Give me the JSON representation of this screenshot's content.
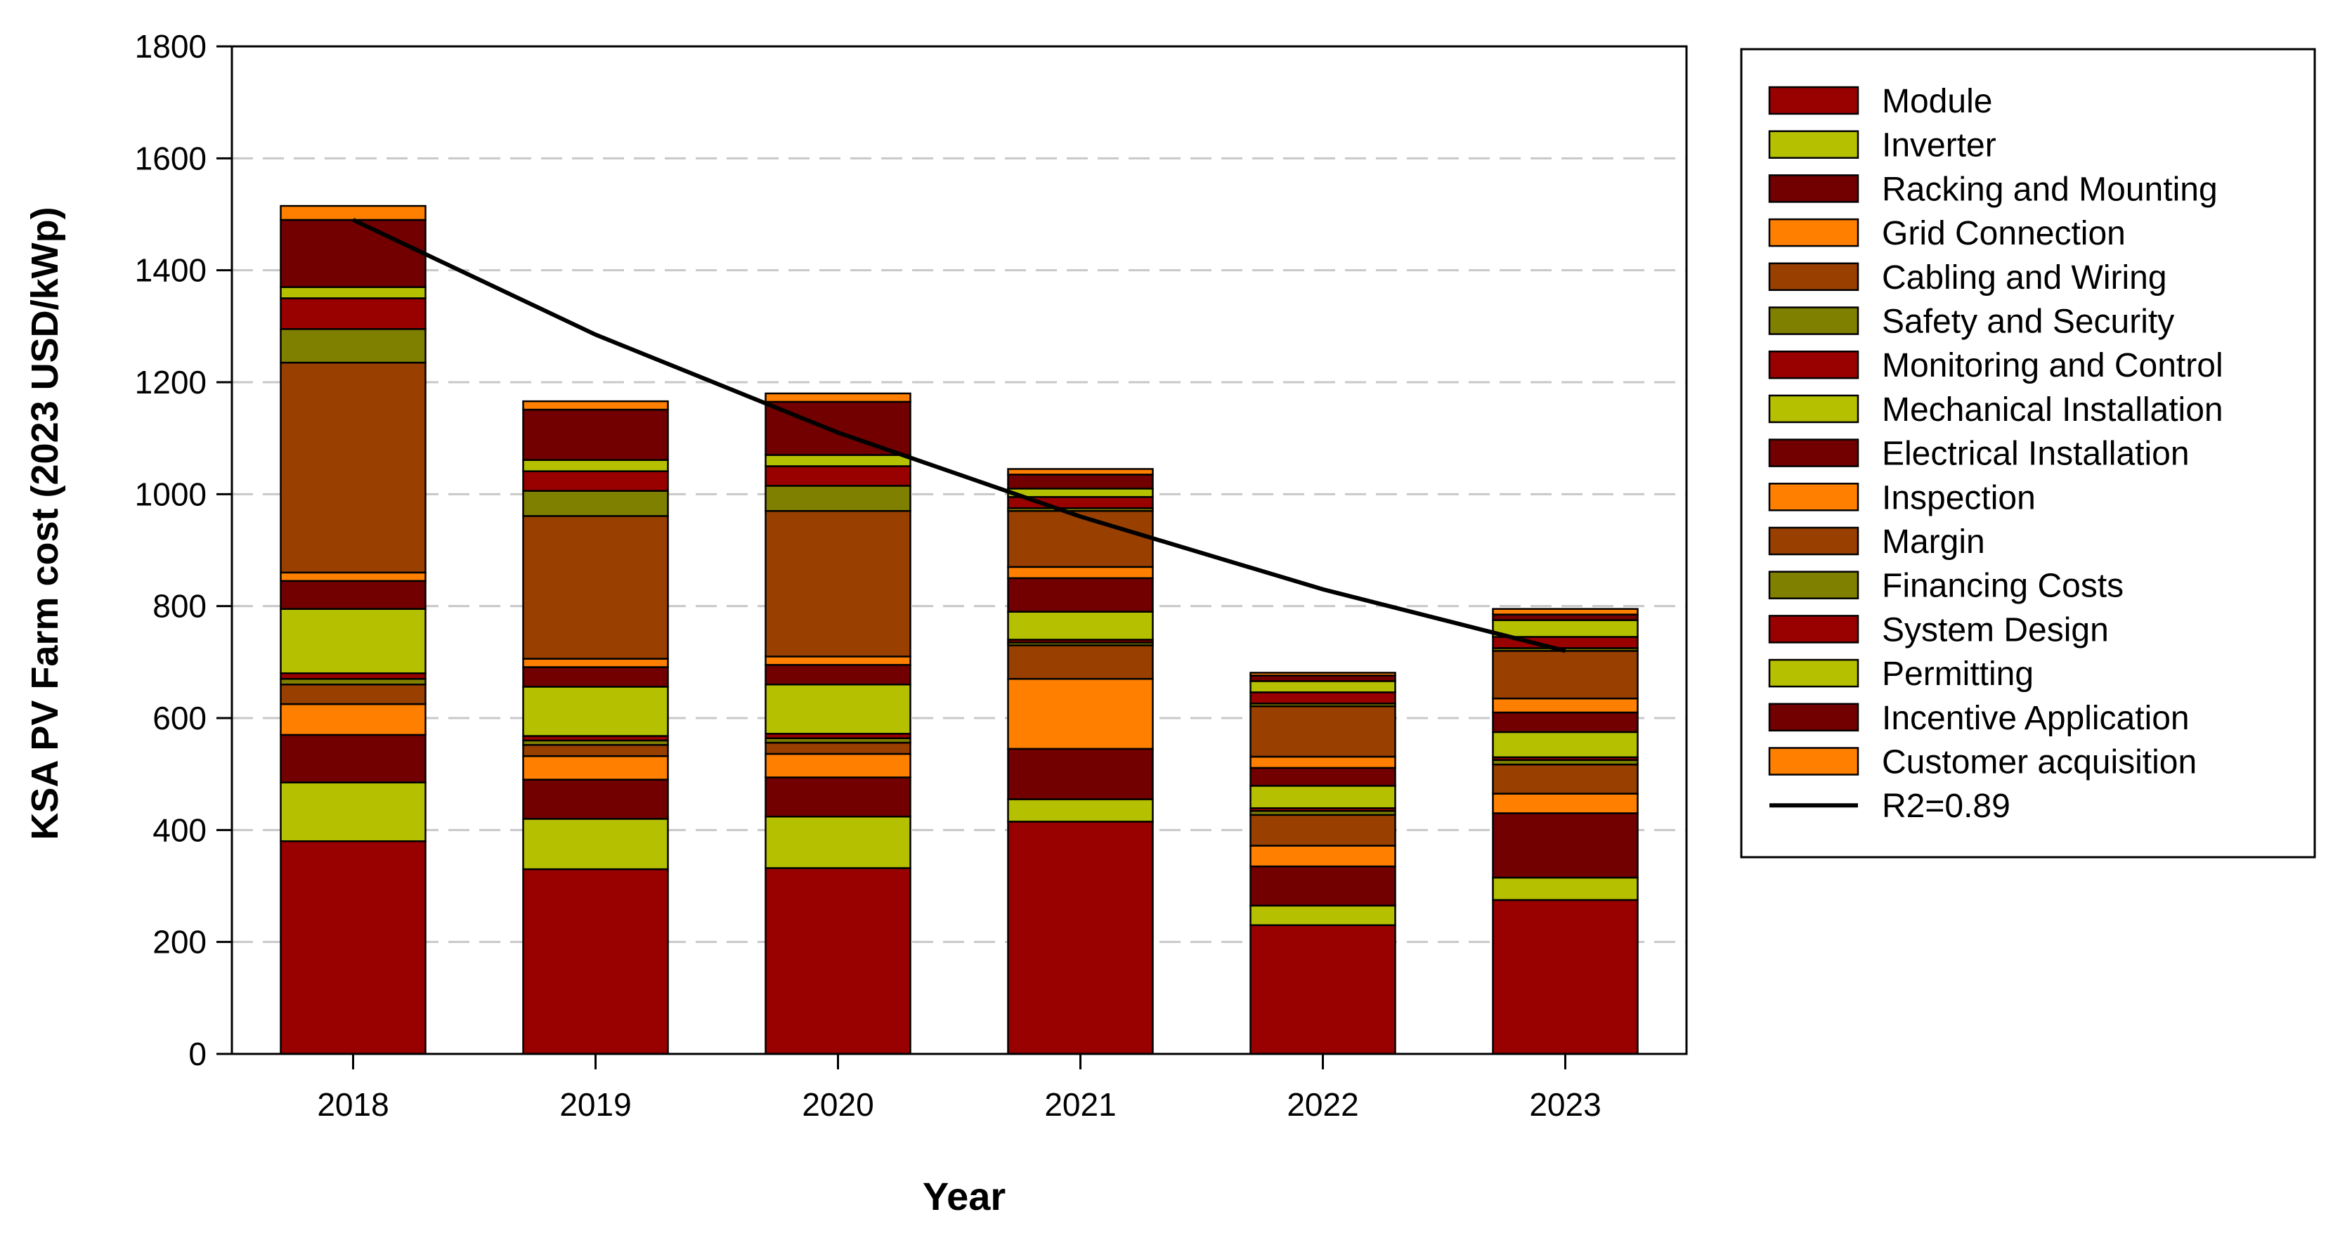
{
  "chart_data": {
    "type": "bar",
    "stacked": true,
    "title": "",
    "xlabel": "Year",
    "ylabel": "KSA PV Farm cost (2023 USD/kWp)",
    "ylim": [
      0,
      1800
    ],
    "yticks": [
      0,
      200,
      400,
      600,
      800,
      1000,
      1200,
      1400,
      1600,
      1800
    ],
    "grid": true,
    "legend_position": "right",
    "categories": [
      "2018",
      "2019",
      "2020",
      "2021",
      "2022",
      "2023"
    ],
    "series": [
      {
        "name": "Module",
        "color": "#990000",
        "values": [
          380,
          330,
          332,
          415,
          230,
          275
        ]
      },
      {
        "name": "Inverter",
        "color": "#B5C000",
        "values": [
          105,
          90,
          92,
          40,
          35,
          40
        ]
      },
      {
        "name": "Racking and Mounting",
        "color": "#720000",
        "values": [
          85,
          70,
          70,
          90,
          70,
          115
        ]
      },
      {
        "name": "Grid Connection",
        "color": "#FF8000",
        "values": [
          55,
          42,
          42,
          125,
          37,
          35
        ]
      },
      {
        "name": "Cabling and Wiring",
        "color": "#994000",
        "values": [
          35,
          20,
          20,
          60,
          55,
          52
        ]
      },
      {
        "name": "Safety and Security",
        "color": "#808000",
        "values": [
          10,
          8,
          8,
          5,
          7,
          8
        ]
      },
      {
        "name": "Monitoring and Control",
        "color": "#990000",
        "values": [
          10,
          8,
          8,
          5,
          5,
          5
        ]
      },
      {
        "name": "Mechanical Installation",
        "color": "#B5C000",
        "values": [
          115,
          88,
          88,
          50,
          40,
          45
        ]
      },
      {
        "name": "Electrical Installation",
        "color": "#720000",
        "values": [
          50,
          35,
          35,
          60,
          32,
          35
        ]
      },
      {
        "name": "Inspection",
        "color": "#FF8000",
        "values": [
          15,
          15,
          15,
          20,
          20,
          25
        ]
      },
      {
        "name": "Margin",
        "color": "#994000",
        "values": [
          375,
          255,
          260,
          100,
          90,
          85
        ]
      },
      {
        "name": "Financing Costs",
        "color": "#808000",
        "values": [
          60,
          45,
          45,
          5,
          5,
          5
        ]
      },
      {
        "name": "System Design",
        "color": "#990000",
        "values": [
          55,
          35,
          35,
          20,
          20,
          20
        ]
      },
      {
        "name": "Permitting",
        "color": "#B5C000",
        "values": [
          20,
          20,
          20,
          15,
          20,
          30
        ]
      },
      {
        "name": "Incentive Application",
        "color": "#720000",
        "values": [
          120,
          90,
          95,
          25,
          10,
          10
        ]
      },
      {
        "name": "Customer acquisition",
        "color": "#FF8000",
        "values": [
          25,
          15,
          15,
          10,
          5,
          10
        ]
      }
    ],
    "trendline": {
      "name": "R2=0.89",
      "color": "#000000",
      "values": [
        1490,
        1285,
        1110,
        960,
        830,
        720
      ]
    }
  }
}
